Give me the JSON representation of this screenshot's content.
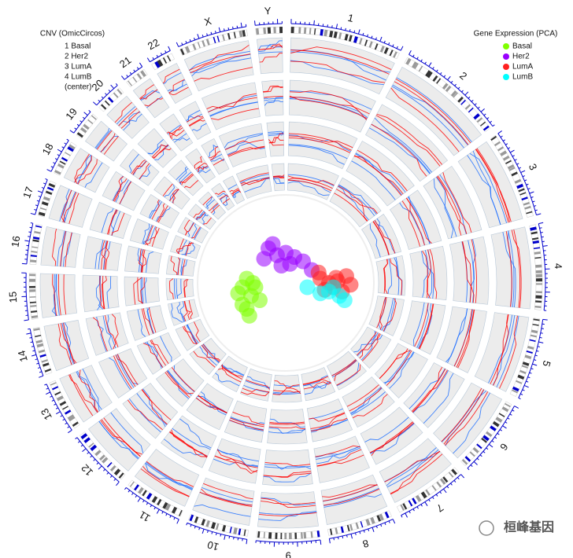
{
  "chart_data": {
    "type": "circos",
    "legend_left": {
      "title": "CNV (OmicCircos)",
      "items": [
        "1 Basal",
        "2 Her2",
        "3 LumA",
        "4 LumB",
        "(center)"
      ]
    },
    "chromosomes": [
      {
        "label": "1",
        "length": 249
      },
      {
        "label": "2",
        "length": 243
      },
      {
        "label": "3",
        "length": 198
      },
      {
        "label": "4",
        "length": 191
      },
      {
        "label": "5",
        "length": 181
      },
      {
        "label": "6",
        "length": 171
      },
      {
        "label": "7",
        "length": 159
      },
      {
        "label": "8",
        "length": 146
      },
      {
        "label": "9",
        "length": 141
      },
      {
        "label": "10",
        "length": 136
      },
      {
        "label": "11",
        "length": 135
      },
      {
        "label": "12",
        "length": 134
      },
      {
        "label": "13",
        "length": 115
      },
      {
        "label": "14",
        "length": 107
      },
      {
        "label": "15",
        "length": 103
      },
      {
        "label": "16",
        "length": 90
      },
      {
        "label": "17",
        "length": 81
      },
      {
        "label": "18",
        "length": 78
      },
      {
        "label": "19",
        "length": 59
      },
      {
        "label": "20",
        "length": 63
      },
      {
        "label": "21",
        "length": 48
      },
      {
        "label": "22",
        "length": 51
      },
      {
        "label": "X",
        "length": 155
      },
      {
        "label": "Y",
        "length": 59
      }
    ],
    "pca": {
      "title": "Gene Expression (PCA)",
      "xlim": [
        -1,
        1
      ],
      "ylim": [
        -1,
        1
      ],
      "series": [
        {
          "name": "Basal",
          "color": "#7fff00",
          "x": [
            -0.45,
            -0.5,
            -0.4,
            -0.55,
            -0.35,
            -0.45,
            -0.3,
            -0.5,
            -0.38,
            -0.42
          ],
          "y": [
            0.05,
            -0.05,
            -0.15,
            -0.12,
            -0.05,
            -0.3,
            -0.2,
            -0.25,
            0.0,
            -0.38
          ]
        },
        {
          "name": "Her2",
          "color": "#9900ff",
          "x": [
            -0.2,
            -0.1,
            -0.25,
            0.0,
            0.1,
            -0.05,
            0.2,
            0.3,
            -0.15,
            0.05
          ],
          "y": [
            0.4,
            0.32,
            0.28,
            0.35,
            0.3,
            0.2,
            0.25,
            0.15,
            0.45,
            0.22
          ]
        },
        {
          "name": "LumA",
          "color": "#ff2020",
          "x": [
            0.4,
            0.5,
            0.6,
            0.7,
            0.55,
            0.45,
            0.75,
            0.65,
            0.38,
            0.58
          ],
          "y": [
            0.05,
            0.0,
            0.02,
            0.08,
            -0.05,
            -0.08,
            -0.02,
            -0.1,
            0.12,
            0.06
          ]
        },
        {
          "name": "LumB",
          "color": "#00ffff",
          "x": [
            0.25,
            0.5,
            0.62,
            0.68,
            0.55,
            0.4
          ],
          "y": [
            -0.05,
            -0.1,
            -0.15,
            -0.2,
            -0.05,
            -0.12
          ]
        }
      ]
    },
    "watermark": "桓峰基因"
  }
}
